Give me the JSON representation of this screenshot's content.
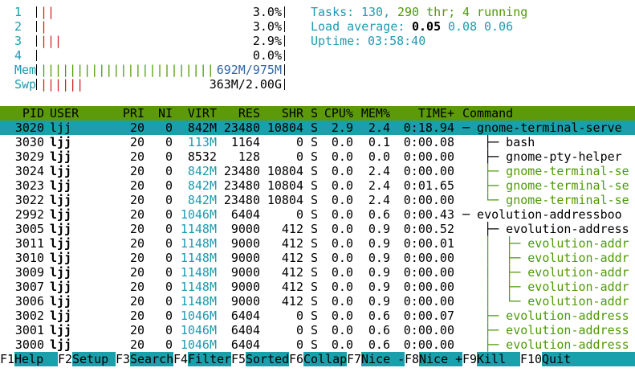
{
  "header": {
    "cpus": [
      {
        "label": "1",
        "bar": "||",
        "value": "3.0%"
      },
      {
        "label": "2",
        "bar": "|",
        "value": "3.0%"
      },
      {
        "label": "3",
        "bar": "|||",
        "value": "2.9%"
      },
      {
        "label": "4",
        "value": "0.0%"
      }
    ],
    "memory": {
      "label": "Mem",
      "bar": "||||||||||||||||||||||||",
      "value": "692M/975M"
    },
    "swap": {
      "label": "Swp",
      "bar": "||||||",
      "value": "363M/2.00G"
    },
    "tasks": {
      "label": "Tasks:",
      "count": "130,",
      "threads": "290 thr;",
      "running": "4 running"
    },
    "load": {
      "label": "Load average:",
      "values": [
        "0.05",
        "0.08",
        "0.06"
      ]
    },
    "uptime": {
      "label": "Uptime:",
      "value": "03:58:40"
    }
  },
  "table": {
    "columns": [
      "PID",
      "USER",
      "PRI",
      "NI",
      "VIRT",
      "RES",
      "SHR",
      "S",
      "CPU%",
      "MEM%",
      "TIME+",
      "Command"
    ],
    "selected_row": 0,
    "thread_rows": [
      3,
      4,
      5,
      8,
      9,
      10,
      11,
      12,
      13,
      14,
      15
    ],
    "rows": [
      [
        "3020",
        "ljj",
        "20",
        "0",
        "842M",
        "23480",
        "10804",
        "S",
        "2.9",
        "2.4",
        "0:18.94",
        "─ gnome-terminal-serve"
      ],
      [
        "3030",
        "ljj",
        "20",
        "0",
        "113M",
        "1164",
        "0",
        "S",
        "0.0",
        "0.1",
        "0:00.08",
        "   ├─ bash"
      ],
      [
        "3029",
        "ljj",
        "20",
        "0",
        "8532",
        "128",
        "0",
        "S",
        "0.0",
        "0.0",
        "0:00.00",
        "   ├─ gnome-pty-helper"
      ],
      [
        "3024",
        "ljj",
        "20",
        "0",
        "842M",
        "23480",
        "10804",
        "S",
        "0.0",
        "2.4",
        "0:00.00",
        "   ├─ gnome-terminal-se"
      ],
      [
        "3023",
        "ljj",
        "20",
        "0",
        "842M",
        "23480",
        "10804",
        "S",
        "0.0",
        "2.4",
        "0:01.65",
        "   ├─ gnome-terminal-se"
      ],
      [
        "3022",
        "ljj",
        "20",
        "0",
        "842M",
        "23480",
        "10804",
        "S",
        "0.0",
        "2.4",
        "0:00.00",
        "   └─ gnome-terminal-se"
      ],
      [
        "2992",
        "ljj",
        "20",
        "0",
        "1046M",
        "6404",
        "0",
        "S",
        "0.0",
        "0.6",
        "0:00.43",
        "─ evolution-addressboo"
      ],
      [
        "3005",
        "ljj",
        "20",
        "0",
        "1148M",
        "9000",
        "412",
        "S",
        "0.0",
        "0.9",
        "0:00.52",
        "   ├─ evolution-address"
      ],
      [
        "3011",
        "ljj",
        "20",
        "0",
        "1148M",
        "9000",
        "412",
        "S",
        "0.0",
        "0.9",
        "0:00.01",
        "   │  ├─ evolution-addr"
      ],
      [
        "3010",
        "ljj",
        "20",
        "0",
        "1148M",
        "9000",
        "412",
        "S",
        "0.0",
        "0.9",
        "0:00.00",
        "   │  ├─ evolution-addr"
      ],
      [
        "3009",
        "ljj",
        "20",
        "0",
        "1148M",
        "9000",
        "412",
        "S",
        "0.0",
        "0.9",
        "0:00.00",
        "   │  ├─ evolution-addr"
      ],
      [
        "3007",
        "ljj",
        "20",
        "0",
        "1148M",
        "9000",
        "412",
        "S",
        "0.0",
        "0.9",
        "0:00.00",
        "   │  ├─ evolution-addr"
      ],
      [
        "3006",
        "ljj",
        "20",
        "0",
        "1148M",
        "9000",
        "412",
        "S",
        "0.0",
        "0.9",
        "0:00.00",
        "   │  └─ evolution-addr"
      ],
      [
        "3002",
        "ljj",
        "20",
        "0",
        "1046M",
        "6404",
        "0",
        "S",
        "0.0",
        "0.6",
        "0:00.07",
        "   ├─ evolution-address"
      ],
      [
        "3001",
        "ljj",
        "20",
        "0",
        "1046M",
        "6404",
        "0",
        "S",
        "0.0",
        "0.6",
        "0:00.00",
        "   ├─ evolution-address"
      ],
      [
        "3000",
        "ljj",
        "20",
        "0",
        "1046M",
        "6404",
        "0",
        "S",
        "0.0",
        "0.6",
        "0:00.00",
        "   ├─ evolution-address"
      ]
    ]
  },
  "footer": [
    {
      "key": "F1",
      "label": "Help"
    },
    {
      "key": "F2",
      "label": "Setup"
    },
    {
      "key": "F3",
      "label": "Search"
    },
    {
      "key": "F4",
      "label": "Filter"
    },
    {
      "key": "F5",
      "label": "Sorted"
    },
    {
      "key": "F6",
      "label": "Collap"
    },
    {
      "key": "F7",
      "label": "Nice -"
    },
    {
      "key": "F8",
      "label": "Nice +"
    },
    {
      "key": "F9",
      "label": "Kill"
    },
    {
      "key": "F10",
      "label": "Quit"
    }
  ]
}
